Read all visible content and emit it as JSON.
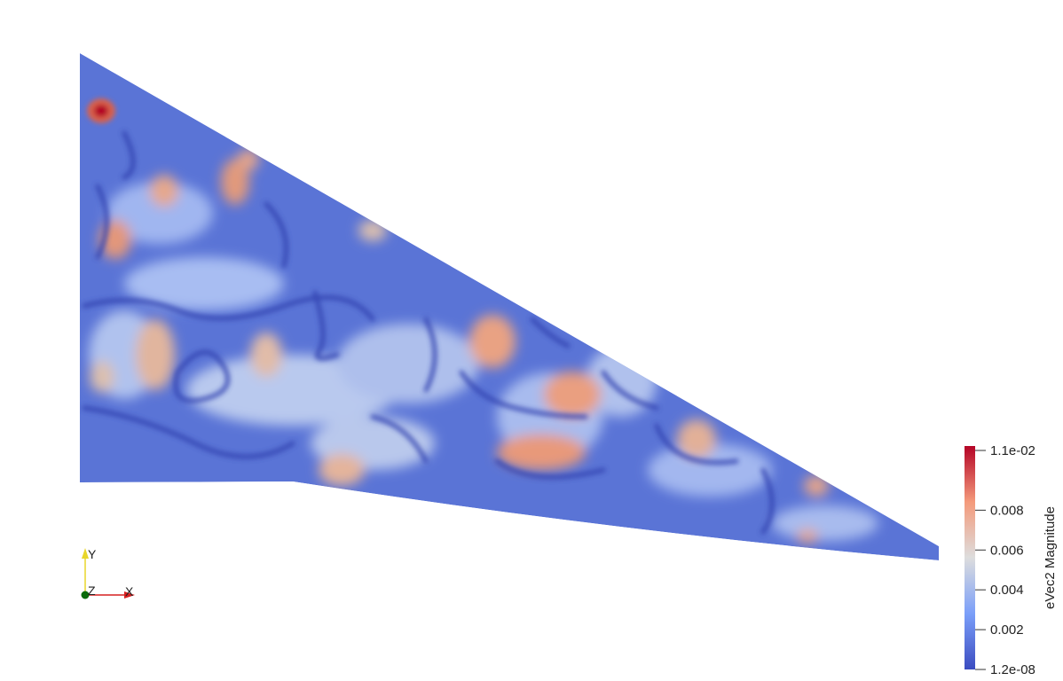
{
  "chart_data": {
    "type": "heatmap",
    "field": "eVec2 Magnitude",
    "colormap": {
      "low": "#3b4cc0",
      "mid": "#dddddd",
      "high": "#b40426",
      "stops": [
        "#3b4cc0",
        "#6889ee",
        "#9abbff",
        "#c9d7f0",
        "#dddddd",
        "#f4c6ac",
        "#f49a7b",
        "#dc5d4a",
        "#b40426"
      ]
    },
    "range": [
      1.2e-08,
      0.011
    ],
    "ticks": [
      {
        "value": 0.011,
        "label": "1.1e-02"
      },
      {
        "value": 0.008,
        "label": "0.008"
      },
      {
        "value": 0.006,
        "label": "0.006"
      },
      {
        "value": 0.004,
        "label": "0.004"
      },
      {
        "value": 0.002,
        "label": "0.002"
      },
      {
        "value": 1.2e-08,
        "label": "1.2e-08"
      }
    ],
    "hotspots": [
      {
        "x": 0.025,
        "y": 0.86,
        "value": 0.011
      },
      {
        "x": 0.18,
        "y": 0.69,
        "value": 0.0085
      },
      {
        "x": 0.1,
        "y": 0.68,
        "value": 0.0075
      },
      {
        "x": 0.04,
        "y": 0.55,
        "value": 0.0078
      },
      {
        "x": 0.47,
        "y": 0.32,
        "value": 0.0075
      },
      {
        "x": 0.52,
        "y": 0.12,
        "value": 0.0082
      },
      {
        "x": 0.56,
        "y": 0.2,
        "value": 0.0078
      },
      {
        "x": 0.7,
        "y": 0.1,
        "value": 0.007
      },
      {
        "x": 0.86,
        "y": 0.02,
        "value": 0.007
      },
      {
        "x": 0.09,
        "y": 0.28,
        "value": 0.0065
      },
      {
        "x": 0.22,
        "y": 0.31,
        "value": 0.0062
      },
      {
        "x": 0.3,
        "y": 0.02,
        "value": 0.0065
      }
    ]
  },
  "axes_widget": {
    "y_label": "Y",
    "x_label": "X",
    "z_label": "Z",
    "colors": {
      "x": "#d62020",
      "y": "#e8d62a",
      "z": "#0a6b0a"
    }
  }
}
